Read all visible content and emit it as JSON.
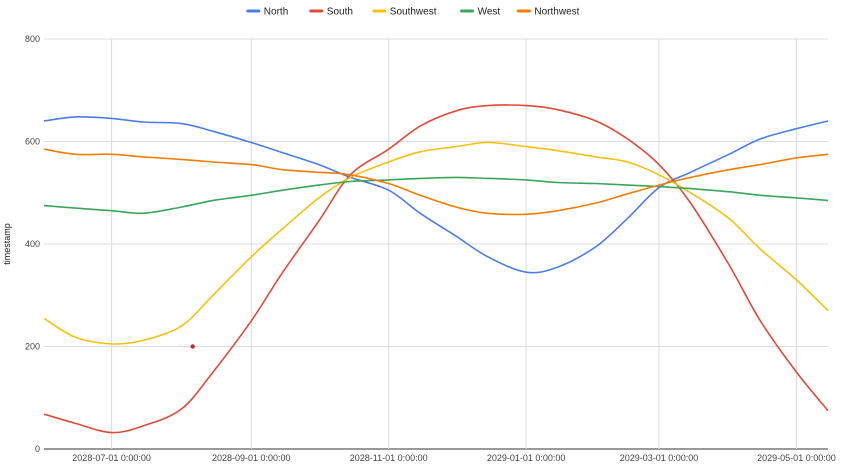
{
  "chart_data": {
    "type": "line",
    "title": "",
    "xlabel": "",
    "ylabel": "timestamp",
    "x_start": "2028-06-01",
    "x_end": "2029-05-15",
    "x_ticks": [
      "2028-07-01 0:00:00",
      "2028-09-01 0:00:00",
      "2028-11-01 0:00:00",
      "2029-01-01 0:00:00",
      "2029-03-01 0:00:00",
      "2029-05-01 0:00:00"
    ],
    "ylim": [
      0,
      800
    ],
    "y_ticks": [
      "0",
      "200",
      "400",
      "600",
      "800"
    ],
    "grid": true,
    "legend_position": "top",
    "series": [
      {
        "name": "North",
        "color": "#4a7de8",
        "points": [
          [
            "2028-06-01",
            640
          ],
          [
            "2028-06-15",
            648
          ],
          [
            "2028-07-01",
            645
          ],
          [
            "2028-07-15",
            638
          ],
          [
            "2028-08-01",
            635
          ],
          [
            "2028-08-15",
            620
          ],
          [
            "2028-09-01",
            598
          ],
          [
            "2028-09-15",
            578
          ],
          [
            "2028-10-01",
            555
          ],
          [
            "2028-10-15",
            530
          ],
          [
            "2028-11-01",
            505
          ],
          [
            "2028-11-15",
            460
          ],
          [
            "2028-12-01",
            415
          ],
          [
            "2028-12-15",
            375
          ],
          [
            "2029-01-01",
            345
          ],
          [
            "2029-01-15",
            355
          ],
          [
            "2029-02-01",
            395
          ],
          [
            "2029-02-15",
            450
          ],
          [
            "2029-03-01",
            510
          ],
          [
            "2029-03-15",
            540
          ],
          [
            "2029-04-01",
            575
          ],
          [
            "2029-04-15",
            605
          ],
          [
            "2029-05-01",
            625
          ],
          [
            "2029-05-15",
            640
          ]
        ]
      },
      {
        "name": "South",
        "color": "#dd4b39",
        "points": [
          [
            "2028-06-01",
            68
          ],
          [
            "2028-06-15",
            50
          ],
          [
            "2028-07-01",
            32
          ],
          [
            "2028-07-15",
            45
          ],
          [
            "2028-08-01",
            78
          ],
          [
            "2028-08-15",
            150
          ],
          [
            "2028-09-01",
            250
          ],
          [
            "2028-09-15",
            345
          ],
          [
            "2028-10-01",
            445
          ],
          [
            "2028-10-15",
            535
          ],
          [
            "2028-11-01",
            585
          ],
          [
            "2028-11-15",
            630
          ],
          [
            "2028-12-01",
            660
          ],
          [
            "2028-12-15",
            670
          ],
          [
            "2029-01-01",
            670
          ],
          [
            "2029-01-15",
            662
          ],
          [
            "2029-02-01",
            640
          ],
          [
            "2029-02-15",
            605
          ],
          [
            "2029-03-01",
            555
          ],
          [
            "2029-03-15",
            480
          ],
          [
            "2029-04-01",
            360
          ],
          [
            "2029-04-15",
            250
          ],
          [
            "2029-05-01",
            150
          ],
          [
            "2029-05-15",
            75
          ]
        ]
      },
      {
        "name": "Southwest",
        "color": "#f4c20d",
        "points": [
          [
            "2028-06-01",
            255
          ],
          [
            "2028-06-15",
            218
          ],
          [
            "2028-07-01",
            205
          ],
          [
            "2028-07-15",
            212
          ],
          [
            "2028-08-01",
            240
          ],
          [
            "2028-08-15",
            300
          ],
          [
            "2028-09-01",
            375
          ],
          [
            "2028-09-15",
            430
          ],
          [
            "2028-10-01",
            490
          ],
          [
            "2028-10-15",
            530
          ],
          [
            "2028-11-01",
            560
          ],
          [
            "2028-11-15",
            580
          ],
          [
            "2028-12-01",
            590
          ],
          [
            "2028-12-15",
            598
          ],
          [
            "2029-01-01",
            590
          ],
          [
            "2029-01-15",
            582
          ],
          [
            "2029-02-01",
            570
          ],
          [
            "2029-02-15",
            560
          ],
          [
            "2029-03-01",
            535
          ],
          [
            "2029-03-15",
            500
          ],
          [
            "2029-04-01",
            450
          ],
          [
            "2029-04-15",
            390
          ],
          [
            "2029-05-01",
            330
          ],
          [
            "2029-05-15",
            270
          ]
        ]
      },
      {
        "name": "West",
        "color": "#3ba55c",
        "points": [
          [
            "2028-06-01",
            475
          ],
          [
            "2028-06-15",
            470
          ],
          [
            "2028-07-01",
            465
          ],
          [
            "2028-07-15",
            460
          ],
          [
            "2028-08-01",
            472
          ],
          [
            "2028-08-15",
            485
          ],
          [
            "2028-09-01",
            495
          ],
          [
            "2028-09-15",
            505
          ],
          [
            "2028-10-01",
            515
          ],
          [
            "2028-10-15",
            522
          ],
          [
            "2028-11-01",
            525
          ],
          [
            "2028-11-15",
            528
          ],
          [
            "2028-12-01",
            530
          ],
          [
            "2028-12-15",
            528
          ],
          [
            "2029-01-01",
            525
          ],
          [
            "2029-01-15",
            520
          ],
          [
            "2029-02-01",
            518
          ],
          [
            "2029-02-15",
            515
          ],
          [
            "2029-03-01",
            512
          ],
          [
            "2029-03-15",
            508
          ],
          [
            "2029-04-01",
            502
          ],
          [
            "2029-04-15",
            495
          ],
          [
            "2029-05-01",
            490
          ],
          [
            "2029-05-15",
            485
          ]
        ]
      },
      {
        "name": "Northwest",
        "color": "#f57c00",
        "points": [
          [
            "2028-06-01",
            585
          ],
          [
            "2028-06-15",
            575
          ],
          [
            "2028-07-01",
            575
          ],
          [
            "2028-07-15",
            570
          ],
          [
            "2028-08-01",
            565
          ],
          [
            "2028-08-15",
            560
          ],
          [
            "2028-09-01",
            555
          ],
          [
            "2028-09-15",
            545
          ],
          [
            "2028-10-01",
            540
          ],
          [
            "2028-10-15",
            535
          ],
          [
            "2028-11-01",
            518
          ],
          [
            "2028-11-15",
            495
          ],
          [
            "2028-12-01",
            472
          ],
          [
            "2028-12-15",
            460
          ],
          [
            "2029-01-01",
            458
          ],
          [
            "2029-01-15",
            465
          ],
          [
            "2029-02-01",
            480
          ],
          [
            "2029-02-15",
            498
          ],
          [
            "2029-03-01",
            515
          ],
          [
            "2029-03-15",
            530
          ],
          [
            "2029-04-01",
            545
          ],
          [
            "2029-04-15",
            555
          ],
          [
            "2029-05-01",
            568
          ],
          [
            "2029-05-15",
            575
          ]
        ]
      }
    ],
    "annotations": [
      {
        "x": "2028-08-06",
        "y": 200,
        "color": "#c62828",
        "shape": "point"
      }
    ]
  }
}
